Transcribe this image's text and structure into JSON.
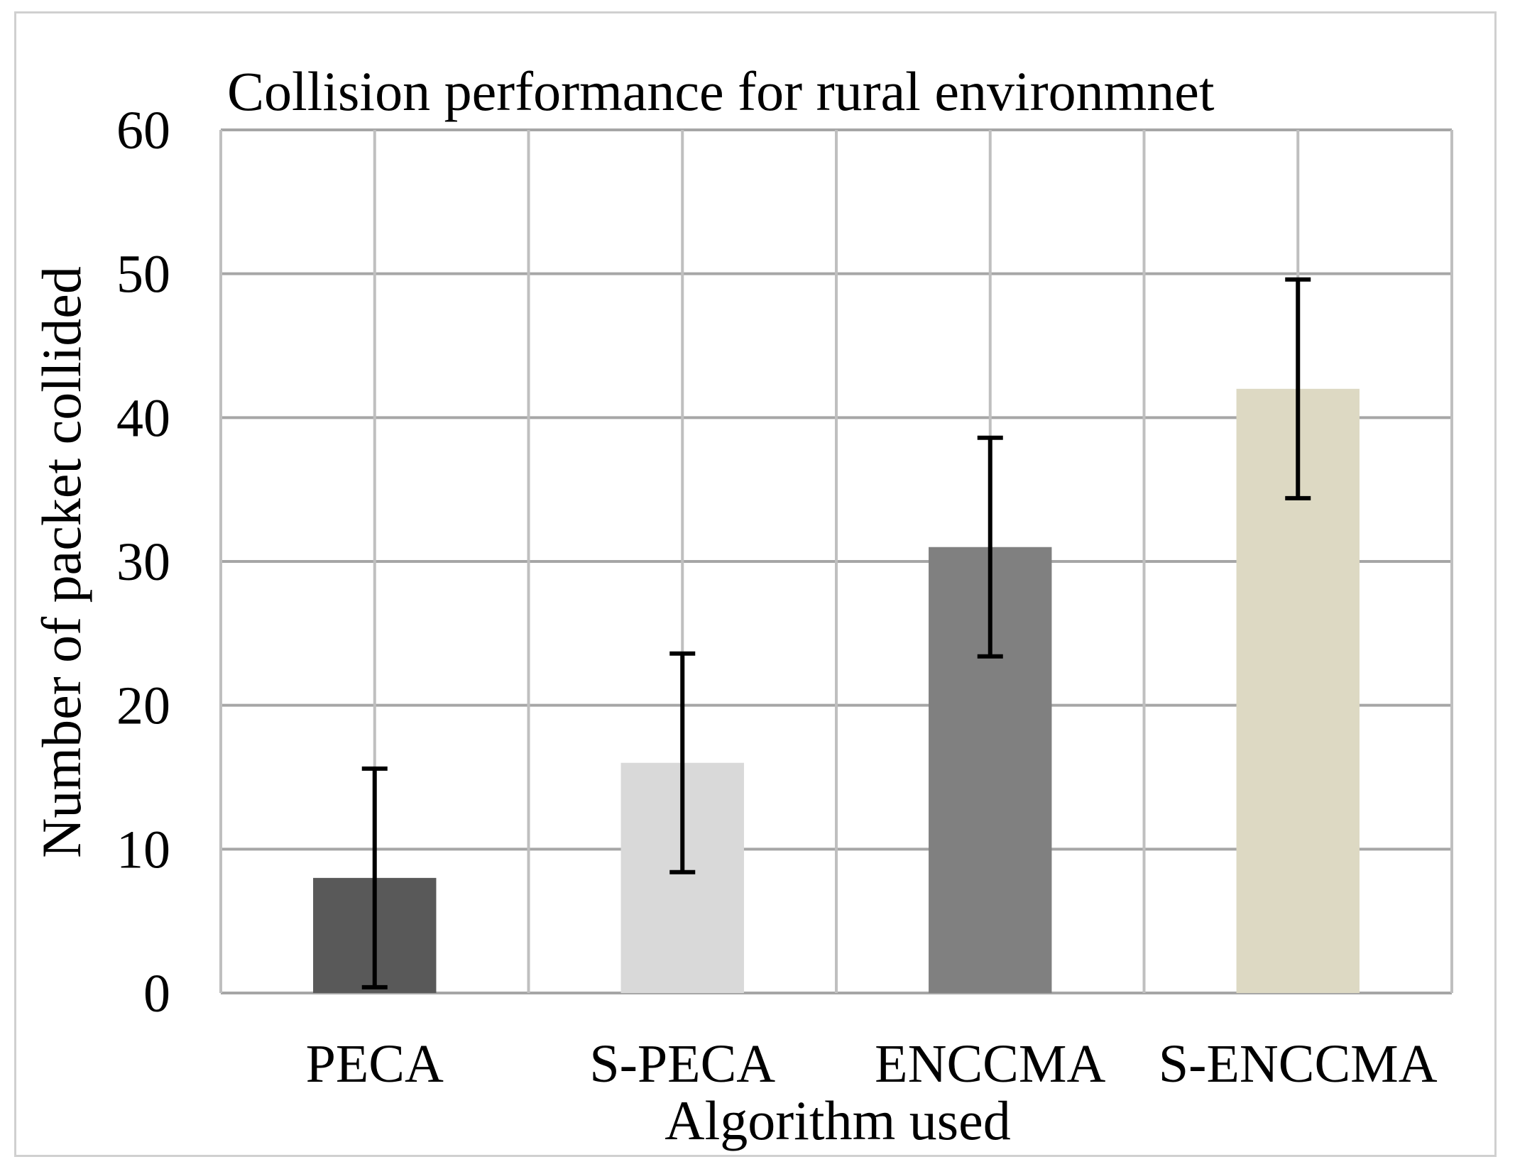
{
  "chart_data": {
    "type": "bar",
    "title": "Collision performance for rural environmnet",
    "xlabel": "Algorithm used",
    "ylabel": "Number of packet collided",
    "categories": [
      "PECA",
      "S-PECA",
      "ENCCMA",
      "S-ENCCMA"
    ],
    "values": [
      8,
      16,
      31,
      42
    ],
    "error_low": [
      0.4,
      8.4,
      23.4,
      34.4
    ],
    "error_high": [
      15.6,
      23.6,
      38.6,
      49.6
    ],
    "bar_colors": [
      "#595959",
      "#d9d9d9",
      "#808080",
      "#ddd9c3"
    ],
    "ylim": [
      0,
      60
    ],
    "yticks": [
      "0",
      "10",
      "20",
      "30",
      "40",
      "50",
      "60"
    ],
    "grid": true,
    "legend": "none"
  }
}
